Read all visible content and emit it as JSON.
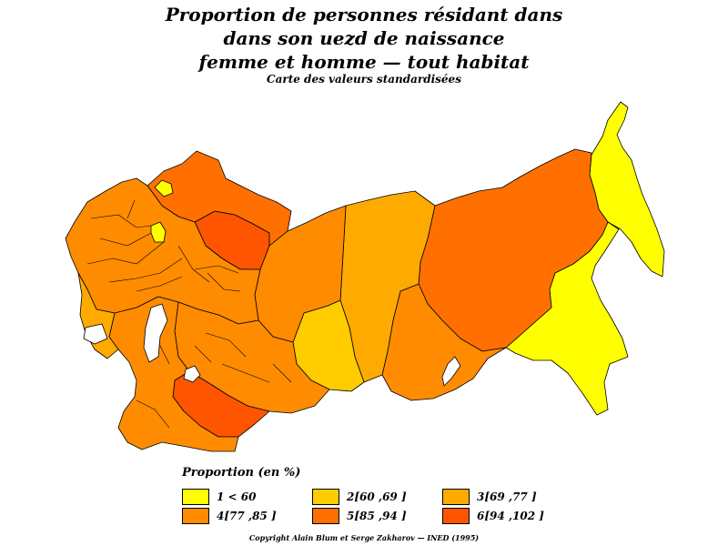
{
  "title": {
    "line1": "Proportion de personnes résidant dans",
    "line2": "dans son uezd de naissance",
    "line3": "femme et homme  —  tout habitat",
    "subtitle": "Carte des valeurs standardisées"
  },
  "legend": {
    "title": "Proportion  (en %)",
    "items": [
      {
        "label": "1  <  60",
        "color": "#ffff00"
      },
      {
        "label": "2[60  ,69  ]",
        "color": "#ffcc00"
      },
      {
        "label": "3[69  ,77  ]",
        "color": "#ffaa00"
      },
      {
        "label": "4[77  ,85  ]",
        "color": "#ff8c00"
      },
      {
        "label": "5[85  ,94  ]",
        "color": "#ff7000"
      },
      {
        "label": "6[94  ,102  ]",
        "color": "#ff5500"
      }
    ]
  },
  "copyright": "Copyright  Alain  Blum  et  Serge  Zakharov  —  INED  (1995)",
  "regions": [
    {
      "id": "far-east-coast",
      "class": 1
    },
    {
      "id": "primorye",
      "class": 1
    },
    {
      "id": "east-siberia-north",
      "class": 5
    },
    {
      "id": "yakutia",
      "class": 5
    },
    {
      "id": "irkutsk",
      "class": 4
    },
    {
      "id": "west-siberia-north",
      "class": 3
    },
    {
      "id": "west-siberia-south",
      "class": 2
    },
    {
      "id": "tobolsk",
      "class": 4
    },
    {
      "id": "ural-north",
      "class": 6
    },
    {
      "id": "european-north",
      "class": 5
    },
    {
      "id": "central-russia",
      "class": 4
    },
    {
      "id": "kazakh-steppe",
      "class": 4
    },
    {
      "id": "turkestan",
      "class": 6
    },
    {
      "id": "caucasus",
      "class": 4
    },
    {
      "id": "white-sea-enclave",
      "class": 1
    },
    {
      "id": "moscow-enclave",
      "class": 1
    },
    {
      "id": "baltic-west",
      "class": 3
    }
  ]
}
